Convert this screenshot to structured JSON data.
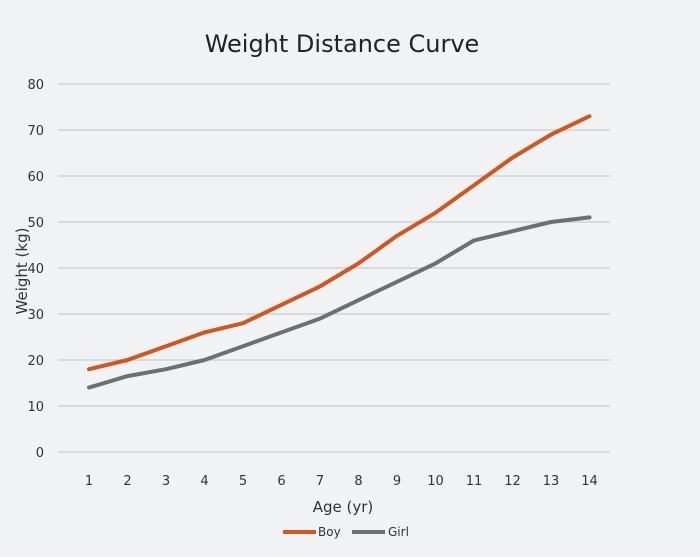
{
  "chart_data": {
    "type": "line",
    "title": "Weight Distance Curve",
    "xlabel": "Age (yr)",
    "ylabel": "Weight (kg)",
    "x": [
      1,
      2,
      3,
      4,
      5,
      6,
      7,
      8,
      9,
      10,
      11,
      12,
      13,
      14
    ],
    "xticks": [
      "1",
      "2",
      "3",
      "4",
      "5",
      "6",
      "7",
      "8",
      "9",
      "10",
      "11",
      "12",
      "13",
      "14"
    ],
    "yticks": [
      "0",
      "10",
      "20",
      "30",
      "40",
      "50",
      "60",
      "70",
      "80"
    ],
    "ylim": [
      0,
      80
    ],
    "grid": true,
    "legend": "bottom",
    "series": [
      {
        "name": "Boy",
        "color": "#d2561f",
        "values": [
          18,
          20,
          23,
          26,
          28,
          32,
          36,
          41,
          47,
          52,
          58,
          64,
          69,
          73
        ]
      },
      {
        "name": "Girl",
        "color": "#6d7070",
        "values": [
          14,
          16.5,
          18,
          20,
          23,
          26,
          29,
          33,
          37,
          41,
          46,
          48,
          50,
          51
        ]
      }
    ]
  }
}
